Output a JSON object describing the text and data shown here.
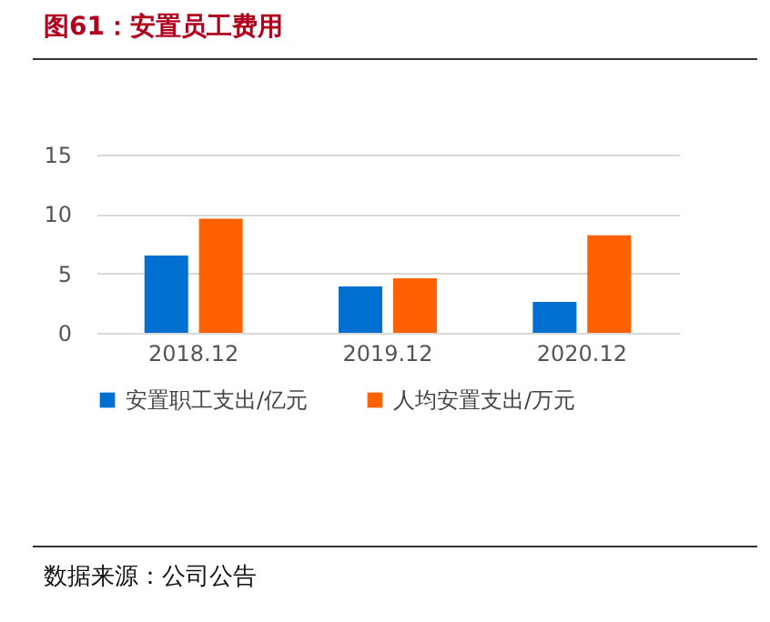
{
  "chart_data": {
    "type": "bar",
    "title": "图61：安置员工费用",
    "categories": [
      "2018.12",
      "2019.12",
      "2020.12"
    ],
    "series": [
      {
        "name": "安置职工支出/亿元",
        "color": "#0070d0",
        "values": [
          6.5,
          3.9,
          2.6
        ]
      },
      {
        "name": "人均安置支出/万元",
        "color": "#ff6000",
        "values": [
          9.6,
          4.6,
          8.2
        ]
      }
    ],
    "ylim": [
      0,
      15
    ],
    "yticks": [
      0,
      5,
      10,
      15
    ],
    "grid": "y",
    "legend": "bottom",
    "annotations": [
      "数据来源：公司公告"
    ]
  }
}
